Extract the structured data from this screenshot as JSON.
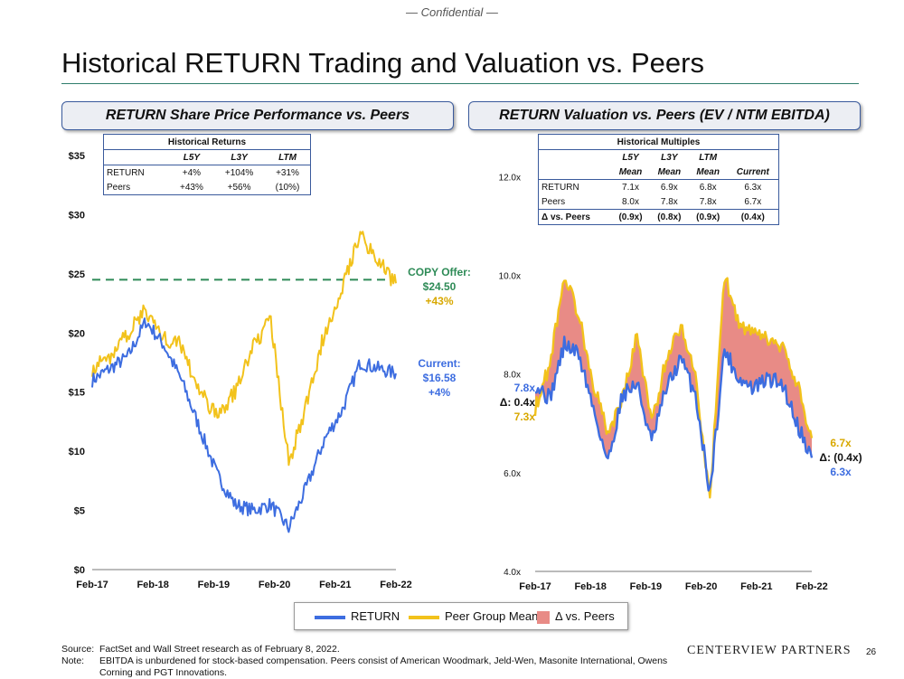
{
  "confidential": "— Confidential —",
  "page_title": "Historical RETURN Trading and Valuation vs. Peers",
  "colors": {
    "return": "#3d6de0",
    "peer": "#f2c21b",
    "delta": "#e88b86",
    "offer": "#2e8b57",
    "border": "#3a5a9c"
  },
  "left_panel": {
    "header": "RETURN Share Price Performance vs. Peers",
    "table": {
      "title": "Historical Returns",
      "columns": [
        "L5Y",
        "L3Y",
        "LTM"
      ],
      "rows": [
        {
          "label": "RETURN",
          "values": [
            "+4%",
            "+104%",
            "+31%"
          ]
        },
        {
          "label": "Peers",
          "values": [
            "+43%",
            "+56%",
            "(10%)"
          ]
        }
      ]
    },
    "annotations": {
      "offer": {
        "l1": "COPY Offer:",
        "l2": "$24.50",
        "l3": "+43%"
      },
      "current": {
        "l1": "Current:",
        "l2": "$16.58",
        "l3": "+4%"
      }
    }
  },
  "right_panel": {
    "header": "RETURN Valuation vs. Peers (EV / NTM EBITDA)",
    "table": {
      "title": "Historical Multiples",
      "columns_top": [
        "L5Y",
        "L3Y",
        "LTM",
        ""
      ],
      "columns_bottom": [
        "Mean",
        "Mean",
        "Mean",
        "Current"
      ],
      "rows": [
        {
          "label": "RETURN",
          "values": [
            "7.1x",
            "6.9x",
            "6.8x",
            "6.3x"
          ]
        },
        {
          "label": "Peers",
          "values": [
            "8.0x",
            "7.8x",
            "7.8x",
            "6.7x"
          ]
        },
        {
          "label": "Δ vs. Peers",
          "values": [
            "(0.9x)",
            "(0.8x)",
            "(0.9x)",
            "(0.4x)"
          ]
        }
      ]
    },
    "annotations": {
      "start": {
        "return": "7.8x",
        "delta": "Δ: 0.4x",
        "peer": "7.3x"
      },
      "end": {
        "peer": "6.7x",
        "delta": "Δ: (0.4x)",
        "return": "6.3x"
      }
    }
  },
  "legend": {
    "return": "RETURN",
    "peer": "Peer Group Mean",
    "delta": "Δ vs. Peers"
  },
  "footnotes": {
    "source_label": "Source:",
    "source_text": "FactSet and Wall Street research as of February 8, 2022.",
    "note_label": "Note:",
    "note_text": "EBITDA is unburdened for stock-based compensation. Peers consist of American Woodmark, Jeld-Wen, Masonite International, Owens Corning and PGT Innovations."
  },
  "brand": "CENTERVIEW PARTNERS",
  "page_number": "26",
  "chart_data": [
    {
      "type": "line",
      "title": "RETURN Share Price Performance vs. Peers",
      "xlabel": "",
      "ylabel": "",
      "x_ticks": [
        "Feb-17",
        "Feb-18",
        "Feb-19",
        "Feb-20",
        "Feb-21",
        "Feb-22"
      ],
      "y_ticks": [
        "$0",
        "$5",
        "$10",
        "$15",
        "$20",
        "$25",
        "$30",
        "$35"
      ],
      "ylim": [
        0,
        35
      ],
      "reference_line": {
        "label": "COPY Offer",
        "value": 24.5
      },
      "x": [
        "Feb-17",
        "Jun-17",
        "Oct-17",
        "Feb-18",
        "Apr-18",
        "Jun-18",
        "Oct-18",
        "Jan-19",
        "Jun-19",
        "Oct-19",
        "Feb-20",
        "Mar-20",
        "Jun-20",
        "Oct-20",
        "Feb-21",
        "Jun-21",
        "Oct-21",
        "Feb-22"
      ],
      "series": [
        {
          "name": "RETURN",
          "values": [
            16,
            17,
            18,
            21,
            19,
            16,
            12,
            8,
            5.5,
            5,
            5.5,
            3.5,
            7,
            11,
            13.5,
            17.5,
            17,
            16.58
          ]
        },
        {
          "name": "Peer Group Mean",
          "values": [
            17,
            18,
            20,
            22,
            19.5,
            19,
            15,
            13,
            15,
            19,
            21,
            9,
            14,
            20,
            24,
            28.5,
            26,
            24.2
          ]
        }
      ]
    },
    {
      "type": "area",
      "title": "RETURN Valuation vs. Peers (EV / NTM EBITDA)",
      "xlabel": "",
      "ylabel": "",
      "x_ticks": [
        "Feb-17",
        "Feb-18",
        "Feb-19",
        "Feb-20",
        "Feb-21",
        "Feb-22"
      ],
      "y_ticks": [
        "4.0x",
        "6.0x",
        "8.0x",
        "10.0x",
        "12.0x"
      ],
      "ylim": [
        4,
        12.5
      ],
      "x": [
        "Feb-17",
        "Jun-17",
        "Oct-17",
        "Feb-18",
        "Apr-18",
        "Jun-18",
        "Sep-18",
        "Dec-18",
        "Mar-19",
        "Jun-19",
        "Oct-19",
        "Jan-20",
        "Mar-20",
        "Apr-20",
        "Jul-20",
        "Oct-20",
        "Feb-21",
        "Jun-21",
        "Oct-21",
        "Feb-22"
      ],
      "series": [
        {
          "name": "RETURN",
          "values": [
            7.8,
            7.5,
            8.6,
            8.4,
            7.3,
            6.2,
            7.6,
            7.8,
            6.6,
            7.7,
            8.3,
            7.6,
            5.6,
            8.5,
            7.9,
            7.7,
            7.9,
            7.8,
            7.0,
            6.3
          ]
        },
        {
          "name": "Peer Group Mean",
          "values": [
            7.3,
            8.2,
            10.0,
            9.2,
            7.8,
            6.8,
            7.5,
            8.8,
            7.0,
            8.3,
            9.0,
            8.0,
            5.4,
            10.0,
            9.0,
            8.8,
            8.7,
            8.5,
            7.8,
            6.7
          ]
        }
      ]
    }
  ]
}
